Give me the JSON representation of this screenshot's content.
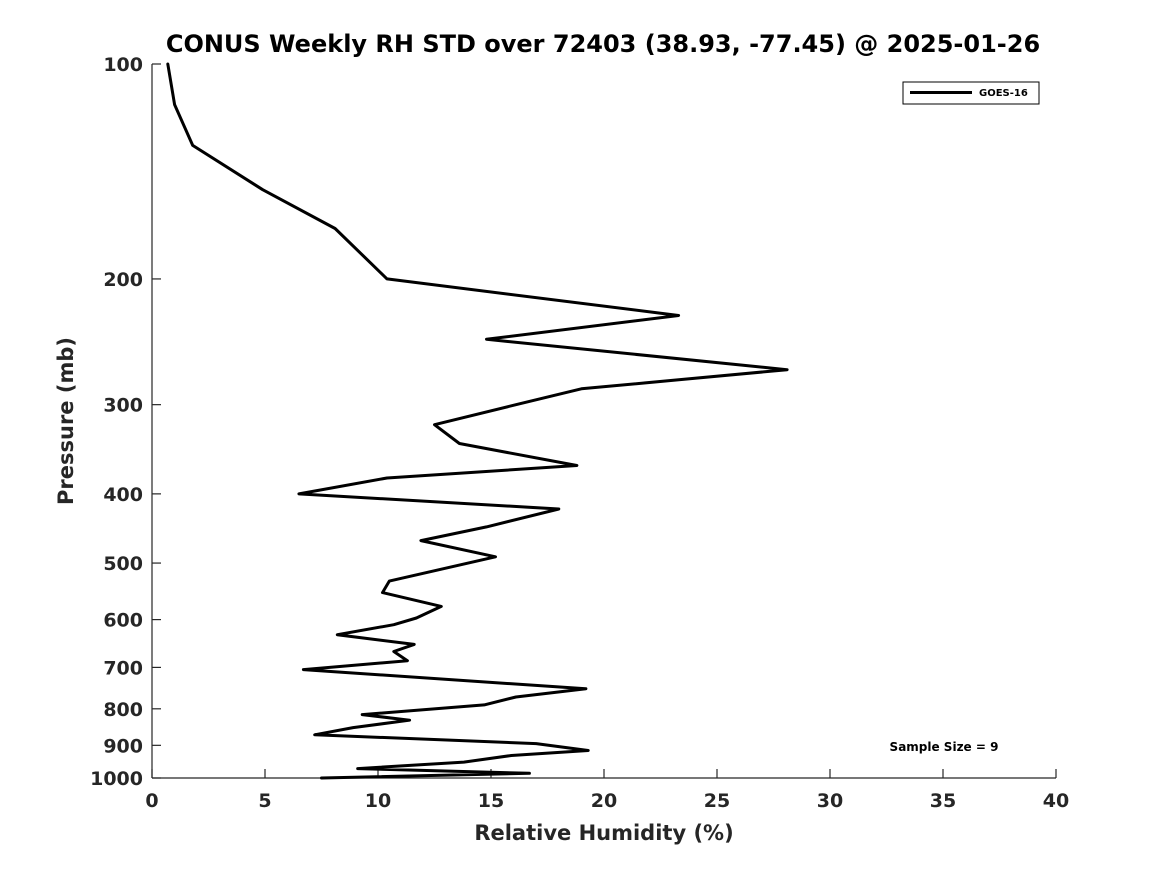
{
  "chart_data": {
    "type": "line",
    "title": "CONUS Weekly RH STD over 72403 (38.93, -77.45) @ 2025-01-26",
    "xlabel": "Relative Humidity (%)",
    "ylabel": "Pressure (mb)",
    "xlim": [
      0,
      40
    ],
    "ylim": [
      100,
      1000
    ],
    "y_scale": "log",
    "y_reversed": true,
    "grid": false,
    "legend_position": "top-right",
    "x_ticks": [
      "0",
      "5",
      "10",
      "15",
      "20",
      "25",
      "30",
      "35",
      "40"
    ],
    "y_ticks": [
      "100",
      "200",
      "300",
      "400",
      "500",
      "600",
      "700",
      "800",
      "900",
      "1000"
    ],
    "annotation": "Sample Size = 9",
    "series": [
      {
        "name": "GOES-16",
        "color": "#000000",
        "x": [
          0.7,
          1.0,
          1.8,
          4.9,
          8.1,
          10.4,
          23.3,
          14.8,
          28.1,
          19.0,
          16.1,
          12.5,
          13.6,
          18.8,
          10.4,
          6.5,
          18.0,
          14.8,
          11.9,
          15.2,
          12.8,
          10.5,
          10.2,
          12.8,
          11.7,
          10.7,
          8.2,
          11.6,
          10.7,
          11.3,
          6.7,
          19.2,
          16.1,
          14.7,
          9.3,
          11.4,
          8.9,
          7.2,
          17.0,
          19.3,
          15.9,
          13.8,
          9.1,
          16.7,
          7.5
        ],
        "y": [
          100,
          114,
          130,
          150,
          170,
          200,
          225,
          243,
          268,
          285,
          300,
          320,
          340,
          365,
          380,
          400,
          420,
          445,
          465,
          490,
          510,
          530,
          550,
          575,
          597,
          610,
          630,
          650,
          665,
          685,
          705,
          750,
          770,
          790,
          815,
          830,
          850,
          870,
          895,
          915,
          930,
          950,
          970,
          985,
          1000
        ]
      }
    ]
  }
}
